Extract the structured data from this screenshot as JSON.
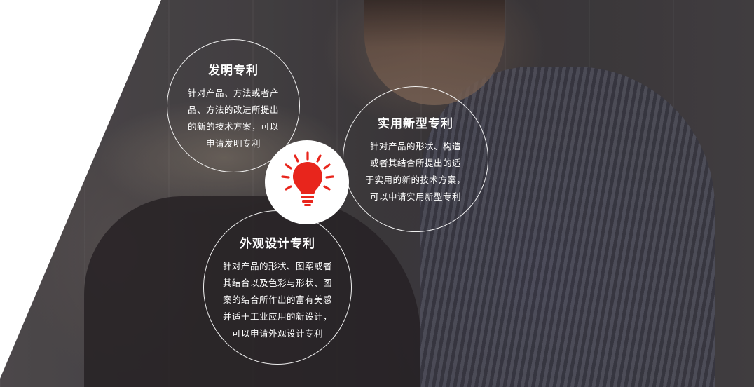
{
  "colors": {
    "accent": "#e8251c",
    "text": "#ffffff",
    "circle_border": "#ffffff"
  },
  "center_icon": "lightbulb-icon",
  "patents": {
    "invention": {
      "title": "发明专利",
      "lines": [
        "针对产品、方法或者产",
        "品、方法的改进所提出",
        "的新的技术方案，可以",
        "申请发明专利"
      ]
    },
    "utility": {
      "title": "实用新型专利",
      "lines": [
        "针对产品的形状、构造",
        "或者其结合所提出的适",
        "于实用的新的技术方案，",
        "可以申请实用新型专利"
      ]
    },
    "design": {
      "title": "外观设计专利",
      "lines": [
        "针对产品的形状、图案或者",
        "其结合以及色彩与形状、图",
        "案的结合所作出的富有美感",
        "并适于工业应用的新设计，",
        "可以申请外观设计专利"
      ]
    }
  }
}
